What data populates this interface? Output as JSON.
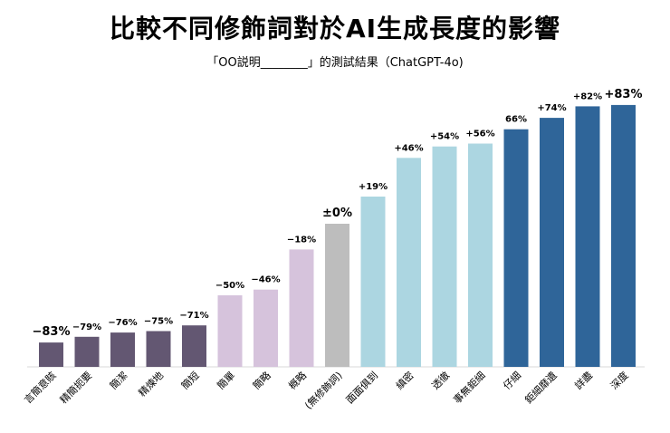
{
  "chart_data": {
    "type": "bar",
    "title": "比較不同修飾詞對於AI生成長度的影響",
    "subtitle": "「OO説明________」的測試結果（ChatGPT-4o)",
    "xlabel": "",
    "ylabel": "",
    "ylim": [
      -100,
      100
    ],
    "grid": false,
    "categories": [
      "言簡意賅",
      "精簡扼要",
      "簡潔",
      "精煉地",
      "簡短",
      "簡單",
      "簡略",
      "概略",
      "(無修飾詞)",
      "面面俱到",
      "縝密",
      "透徹",
      "事無鉅細",
      "仔細",
      "鉅細靡遺",
      "詳盡",
      "深度"
    ],
    "values": [
      -83,
      -79,
      -76,
      -75,
      -71,
      -50,
      -46,
      -18,
      0,
      19,
      46,
      54,
      56,
      66,
      74,
      82,
      83
    ],
    "labels": [
      "−83%",
      "−79%",
      "−76%",
      "−75%",
      "−71%",
      "−50%",
      "−46%",
      "−18%",
      "±0%",
      "+19%",
      "+46%",
      "+54%",
      "+56%",
      "66%",
      "+74%",
      "+82%",
      "+83%"
    ],
    "colors": [
      "#635772",
      "#635772",
      "#635772",
      "#635772",
      "#635772",
      "#d6c3dc",
      "#d6c3dc",
      "#d6c3dc",
      "#bdbdbd",
      "#acd6e1",
      "#acd6e1",
      "#acd6e1",
      "#acd6e1",
      "#2f6599",
      "#2f6599",
      "#2f6599",
      "#2f6599"
    ]
  }
}
